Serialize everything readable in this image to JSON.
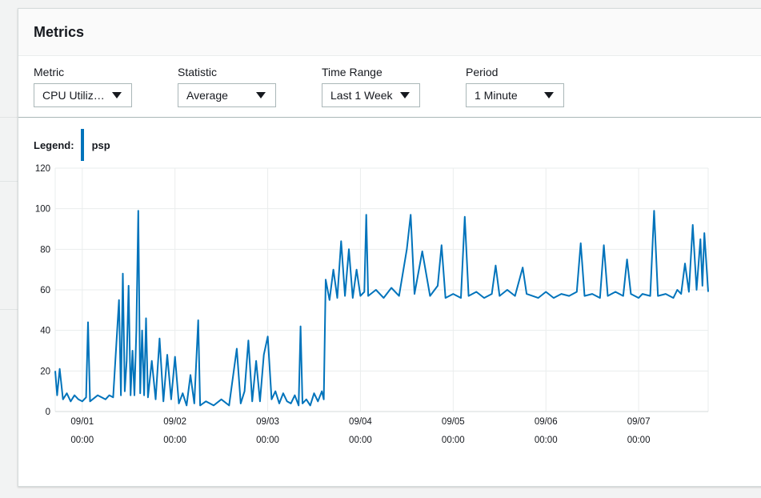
{
  "panel": {
    "title": "Metrics"
  },
  "controls": [
    {
      "label": "Metric",
      "value": "CPU Utiliz…"
    },
    {
      "label": "Statistic",
      "value": "Average"
    },
    {
      "label": "Time Range",
      "value": "Last 1 Week"
    },
    {
      "label": "Period",
      "value": "1 Minute"
    }
  ],
  "legend": {
    "label": "Legend:",
    "series_name": "psp",
    "color": "#0073bb"
  },
  "chart_data": {
    "type": "line",
    "title": "",
    "xlabel": "",
    "ylabel": "",
    "ylim": [
      0,
      120
    ],
    "y_ticks": [
      0,
      20,
      40,
      60,
      80,
      100,
      120
    ],
    "x_ticks": [
      {
        "date": "09/01",
        "time": "00:00"
      },
      {
        "date": "09/02",
        "time": "00:00"
      },
      {
        "date": "09/03",
        "time": "00:00"
      },
      {
        "date": "09/04",
        "time": "00:00"
      },
      {
        "date": "09/05",
        "time": "00:00"
      },
      {
        "date": "09/06",
        "time": "00:00"
      },
      {
        "date": "09/07",
        "time": "00:00"
      }
    ],
    "xlim": [
      "08/31 17:00",
      "09/07 18:00"
    ],
    "grid": true,
    "legend_position": "top-left",
    "series": [
      {
        "name": "psp",
        "color": "#0073bb",
        "points": [
          [
            "08/31 17:00",
            20
          ],
          [
            "08/31 17:30",
            8
          ],
          [
            "08/31 18:10",
            21
          ],
          [
            "08/31 19:00",
            6
          ],
          [
            "08/31 20:00",
            9
          ],
          [
            "08/31 21:00",
            5
          ],
          [
            "08/31 22:00",
            8
          ],
          [
            "08/31 23:00",
            6
          ],
          [
            "09/01 00:00",
            5
          ],
          [
            "09/01 01:00",
            7
          ],
          [
            "09/01 01:30",
            44
          ],
          [
            "09/01 02:00",
            5
          ],
          [
            "09/01 04:00",
            8
          ],
          [
            "09/01 06:00",
            6
          ],
          [
            "09/01 07:00",
            8
          ],
          [
            "09/01 08:00",
            7
          ],
          [
            "09/01 09:30",
            55
          ],
          [
            "09/01 10:00",
            8
          ],
          [
            "09/01 10:30",
            68
          ],
          [
            "09/01 11:00",
            10
          ],
          [
            "09/01 11:30",
            25
          ],
          [
            "09/01 12:00",
            62
          ],
          [
            "09/01 12:30",
            8
          ],
          [
            "09/01 13:00",
            30
          ],
          [
            "09/01 13:30",
            8
          ],
          [
            "09/01 14:00",
            40
          ],
          [
            "09/01 14:30",
            99
          ],
          [
            "09/01 15:00",
            9
          ],
          [
            "09/01 15:30",
            40
          ],
          [
            "09/01 16:00",
            8
          ],
          [
            "09/01 16:30",
            46
          ],
          [
            "09/01 17:00",
            7
          ],
          [
            "09/01 18:00",
            25
          ],
          [
            "09/01 19:00",
            6
          ],
          [
            "09/01 20:00",
            36
          ],
          [
            "09/01 21:00",
            5
          ],
          [
            "09/01 22:00",
            28
          ],
          [
            "09/01 23:00",
            6
          ],
          [
            "09/02 00:00",
            27
          ],
          [
            "09/02 01:00",
            4
          ],
          [
            "09/02 02:00",
            9
          ],
          [
            "09/02 03:00",
            3
          ],
          [
            "09/02 04:00",
            18
          ],
          [
            "09/02 05:00",
            4
          ],
          [
            "09/02 06:00",
            45
          ],
          [
            "09/02 06:30",
            3
          ],
          [
            "09/02 08:00",
            5
          ],
          [
            "09/02 10:00",
            3
          ],
          [
            "09/02 12:00",
            6
          ],
          [
            "09/02 14:00",
            3
          ],
          [
            "09/02 16:00",
            31
          ],
          [
            "09/02 17:00",
            4
          ],
          [
            "09/02 18:00",
            10
          ],
          [
            "09/02 19:00",
            35
          ],
          [
            "09/02 20:00",
            5
          ],
          [
            "09/02 21:00",
            25
          ],
          [
            "09/02 22:00",
            5
          ],
          [
            "09/02 23:00",
            28
          ],
          [
            "09/03 00:00",
            37
          ],
          [
            "09/03 01:00",
            6
          ],
          [
            "09/03 02:00",
            10
          ],
          [
            "09/03 03:00",
            4
          ],
          [
            "09/03 04:00",
            9
          ],
          [
            "09/03 05:00",
            5
          ],
          [
            "09/03 06:00",
            4
          ],
          [
            "09/03 07:00",
            8
          ],
          [
            "09/03 08:00",
            3
          ],
          [
            "09/03 08:30",
            42
          ],
          [
            "09/03 09:00",
            4
          ],
          [
            "09/03 10:00",
            6
          ],
          [
            "09/03 11:00",
            3
          ],
          [
            "09/03 12:00",
            9
          ],
          [
            "09/03 13:00",
            5
          ],
          [
            "09/03 14:00",
            10
          ],
          [
            "09/03 14:30",
            6
          ],
          [
            "09/03 15:00",
            65
          ],
          [
            "09/03 16:00",
            55
          ],
          [
            "09/03 17:00",
            70
          ],
          [
            "09/03 18:00",
            56
          ],
          [
            "09/03 19:00",
            84
          ],
          [
            "09/03 20:00",
            57
          ],
          [
            "09/03 21:00",
            80
          ],
          [
            "09/03 22:00",
            56
          ],
          [
            "09/03 23:00",
            70
          ],
          [
            "09/04 00:00",
            57
          ],
          [
            "09/04 01:00",
            59
          ],
          [
            "09/04 01:30",
            97
          ],
          [
            "09/04 02:00",
            57
          ],
          [
            "09/04 04:00",
            60
          ],
          [
            "09/04 06:00",
            56
          ],
          [
            "09/04 08:00",
            61
          ],
          [
            "09/04 10:00",
            57
          ],
          [
            "09/04 12:00",
            80
          ],
          [
            "09/04 13:00",
            97
          ],
          [
            "09/04 14:00",
            58
          ],
          [
            "09/04 16:00",
            79
          ],
          [
            "09/04 18:00",
            57
          ],
          [
            "09/04 20:00",
            62
          ],
          [
            "09/04 21:00",
            82
          ],
          [
            "09/04 22:00",
            56
          ],
          [
            "09/05 00:00",
            58
          ],
          [
            "09/05 02:00",
            56
          ],
          [
            "09/05 03:00",
            96
          ],
          [
            "09/05 04:00",
            57
          ],
          [
            "09/05 06:00",
            59
          ],
          [
            "09/05 08:00",
            56
          ],
          [
            "09/05 10:00",
            58
          ],
          [
            "09/05 11:00",
            72
          ],
          [
            "09/05 12:00",
            57
          ],
          [
            "09/05 14:00",
            60
          ],
          [
            "09/05 16:00",
            57
          ],
          [
            "09/05 18:00",
            71
          ],
          [
            "09/05 19:00",
            58
          ],
          [
            "09/05 22:00",
            56
          ],
          [
            "09/06 00:00",
            59
          ],
          [
            "09/06 02:00",
            56
          ],
          [
            "09/06 04:00",
            58
          ],
          [
            "09/06 06:00",
            57
          ],
          [
            "09/06 08:00",
            59
          ],
          [
            "09/06 09:00",
            83
          ],
          [
            "09/06 10:00",
            57
          ],
          [
            "09/06 12:00",
            58
          ],
          [
            "09/06 14:00",
            56
          ],
          [
            "09/06 15:00",
            82
          ],
          [
            "09/06 16:00",
            57
          ],
          [
            "09/06 18:00",
            59
          ],
          [
            "09/06 20:00",
            57
          ],
          [
            "09/06 21:00",
            75
          ],
          [
            "09/06 22:00",
            58
          ],
          [
            "09/07 00:00",
            56
          ],
          [
            "09/07 01:00",
            58
          ],
          [
            "09/07 03:00",
            57
          ],
          [
            "09/07 04:00",
            99
          ],
          [
            "09/07 05:00",
            57
          ],
          [
            "09/07 07:00",
            58
          ],
          [
            "09/07 09:00",
            56
          ],
          [
            "09/07 10:00",
            60
          ],
          [
            "09/07 11:00",
            58
          ],
          [
            "09/07 12:00",
            73
          ],
          [
            "09/07 13:00",
            59
          ],
          [
            "09/07 14:00",
            92
          ],
          [
            "09/07 15:00",
            60
          ],
          [
            "09/07 16:00",
            85
          ],
          [
            "09/07 16:30",
            62
          ],
          [
            "09/07 17:00",
            88
          ],
          [
            "09/07 18:00",
            59
          ]
        ]
      }
    ]
  }
}
